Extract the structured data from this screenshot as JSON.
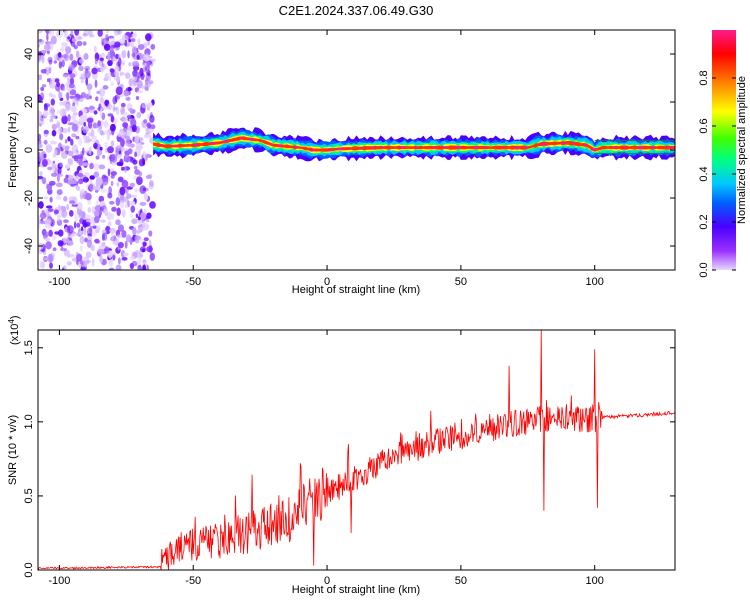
{
  "title": "C2E1.2024.337.06.49.G30",
  "chart_data": [
    {
      "type": "heatmap",
      "xlabel": "Height of straight line (km)",
      "ylabel": "Frequency (Hz)",
      "xlim": [
        -108,
        130
      ],
      "ylim": [
        -50,
        50
      ],
      "x_ticks": [
        -100,
        -50,
        0,
        50,
        100
      ],
      "y_ticks": [
        -40,
        -20,
        0,
        20,
        40
      ],
      "x_tick_labels": [
        "-100",
        "-50",
        "0",
        "50",
        "100"
      ],
      "y_tick_labels": [
        "-40",
        "-20",
        "0",
        "20",
        "40"
      ],
      "colorbar": {
        "label": "Normalized spectral amplitude",
        "range": [
          0,
          1
        ],
        "ticks": [
          0.0,
          0.2,
          0.4,
          0.6,
          0.8
        ],
        "tick_labels": [
          "0.0",
          "0.2",
          "0.4",
          "0.6",
          "0.8"
        ],
        "colormap": [
          "#e8d8ff",
          "#9b30ff",
          "#4b00ff",
          "#0060ff",
          "#00c8ff",
          "#00ff80",
          "#40ff00",
          "#ffff00",
          "#ff8000",
          "#ff0000",
          "#ff1a8c"
        ]
      },
      "noise_region_x": [
        -108,
        -65
      ],
      "signal_band": [
        [
          -65,
          2.5
        ],
        [
          -60,
          1.5
        ],
        [
          -50,
          2.0
        ],
        [
          -40,
          3.0
        ],
        [
          -32,
          5.0
        ],
        [
          -25,
          4.0
        ],
        [
          -20,
          2.0
        ],
        [
          -10,
          1.0
        ],
        [
          -5,
          0.0
        ],
        [
          0,
          0.0
        ],
        [
          5,
          0.5
        ],
        [
          20,
          1.0
        ],
        [
          40,
          1.0
        ],
        [
          60,
          1.0
        ],
        [
          75,
          1.0
        ],
        [
          80,
          2.5
        ],
        [
          90,
          3.0
        ],
        [
          97,
          2.0
        ],
        [
          100,
          0.0
        ],
        [
          103,
          1.0
        ],
        [
          130,
          1.0
        ]
      ],
      "grid": false
    },
    {
      "type": "line",
      "xlabel": "Height of straight line (km)",
      "ylabel": "SNR (10 * v/v)",
      "y_scale_label": "(x10",
      "y_scale_exponent": "4",
      "xlim": [
        -108,
        130
      ],
      "ylim": [
        0,
        1.62
      ],
      "x_ticks": [
        -100,
        -50,
        0,
        50,
        100
      ],
      "y_ticks": [
        0.0,
        0.5,
        1.0,
        1.5
      ],
      "x_tick_labels": [
        "-100",
        "-50",
        "0",
        "50",
        "100"
      ],
      "y_tick_labels": [
        "0.0",
        "0.5",
        "1.0",
        "1.5"
      ],
      "line_color": "#ff0000",
      "baseline": [
        [
          -108,
          0.01
        ],
        [
          -62,
          0.02
        ],
        [
          -56,
          0.12
        ],
        [
          -45,
          0.16
        ],
        [
          -35,
          0.2
        ],
        [
          -25,
          0.24
        ],
        [
          -15,
          0.3
        ],
        [
          -5,
          0.44
        ],
        [
          0,
          0.5
        ],
        [
          10,
          0.6
        ],
        [
          20,
          0.7
        ],
        [
          30,
          0.78
        ],
        [
          40,
          0.85
        ],
        [
          50,
          0.88
        ],
        [
          60,
          0.93
        ],
        [
          70,
          0.97
        ],
        [
          80,
          1.0
        ],
        [
          90,
          1.0
        ],
        [
          100,
          1.0
        ],
        [
          104,
          1.03
        ],
        [
          115,
          1.04
        ],
        [
          130,
          1.06
        ]
      ],
      "spikes": [
        [
          -10,
          0.72
        ],
        [
          -5,
          0.03
        ],
        [
          8,
          0.85
        ],
        [
          9,
          0.25
        ],
        [
          68,
          1.38
        ],
        [
          80,
          1.62
        ],
        [
          81,
          0.4
        ],
        [
          100,
          1.49
        ],
        [
          101,
          0.42
        ]
      ],
      "grid": false
    }
  ]
}
